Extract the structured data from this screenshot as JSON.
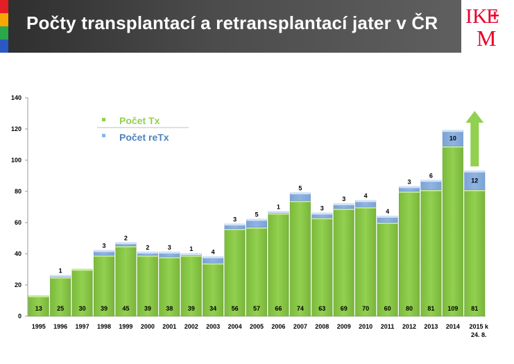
{
  "header": {
    "title": "Počty transplantací a retransplantací jater v ČR",
    "logo_text": "IKEM",
    "stripe_colors": [
      "#e31e24",
      "#f7a800",
      "#2aa84a",
      "#2b59c3"
    ]
  },
  "colors": {
    "tx_bar": "#92d050",
    "retx_bar": "#8fb4e3",
    "tx_text": "#92d050",
    "retx_text": "#4f81bd",
    "arrow": "#92d050",
    "logo": "#e8002a"
  },
  "chart_data": {
    "type": "bar",
    "stacked": true,
    "categories": [
      "1995",
      "1996",
      "1997",
      "1998",
      "1999",
      "2000",
      "2001",
      "2002",
      "2003",
      "2004",
      "2005",
      "2006",
      "2007",
      "2008",
      "2009",
      "2010",
      "2011",
      "2012",
      "2013",
      "2014",
      "2015 k 24. 8."
    ],
    "series": [
      {
        "name": "Počet Tx",
        "values": [
          13,
          25,
          30,
          39,
          45,
          39,
          38,
          39,
          34,
          56,
          57,
          66,
          74,
          63,
          69,
          70,
          60,
          80,
          81,
          109,
          81
        ]
      },
      {
        "name": "Počet reTx",
        "values": [
          null,
          1,
          null,
          3,
          2,
          2,
          3,
          1,
          4,
          3,
          5,
          1,
          5,
          3,
          3,
          4,
          4,
          3,
          6,
          10,
          12
        ]
      }
    ],
    "ylim": [
      0,
      140
    ],
    "yticks": [
      0,
      20,
      40,
      60,
      80,
      100,
      120,
      140
    ],
    "grid": false,
    "legend_position": "top-left",
    "annotations": [
      "upward arrow above 2015 bar"
    ]
  }
}
